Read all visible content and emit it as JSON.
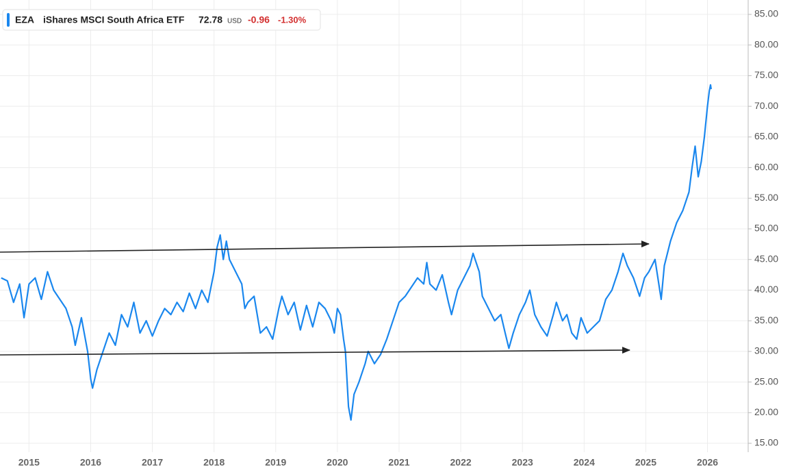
{
  "chart_data": {
    "type": "line",
    "legend": {
      "name": "iShares MSCI South Africa ETF",
      "last": 72.78,
      "currency": "USD",
      "change": -0.96,
      "change_pct": "-1.30%"
    },
    "x": [
      2014.55,
      2014.65,
      2014.75,
      2014.85,
      2014.92,
      2015.0,
      2015.1,
      2015.2,
      2015.3,
      2015.4,
      2015.5,
      2015.6,
      2015.7,
      2015.75,
      2015.85,
      2015.95,
      2016.0,
      2016.03,
      2016.1,
      2016.2,
      2016.3,
      2016.4,
      2016.5,
      2016.6,
      2016.7,
      2016.8,
      2016.9,
      2017.0,
      2017.1,
      2017.2,
      2017.3,
      2017.4,
      2017.5,
      2017.6,
      2017.7,
      2017.8,
      2017.9,
      2018.0,
      2018.05,
      2018.1,
      2018.15,
      2018.2,
      2018.25,
      2018.35,
      2018.45,
      2018.5,
      2018.55,
      2018.65,
      2018.75,
      2018.85,
      2018.95,
      2019.05,
      2019.1,
      2019.2,
      2019.3,
      2019.4,
      2019.5,
      2019.6,
      2019.7,
      2019.8,
      2019.9,
      2019.95,
      2020.0,
      2020.05,
      2020.1,
      2020.13,
      2020.18,
      2020.22,
      2020.27,
      2020.35,
      2020.45,
      2020.5,
      2020.6,
      2020.7,
      2020.8,
      2020.9,
      2021.0,
      2021.1,
      2021.2,
      2021.3,
      2021.4,
      2021.45,
      2021.5,
      2021.6,
      2021.7,
      2021.8,
      2021.85,
      2021.95,
      2022.05,
      2022.15,
      2022.2,
      2022.3,
      2022.35,
      2022.45,
      2022.55,
      2022.65,
      2022.72,
      2022.78,
      2022.85,
      2022.95,
      2023.05,
      2023.12,
      2023.2,
      2023.3,
      2023.4,
      2023.5,
      2023.55,
      2023.65,
      2023.72,
      2023.8,
      2023.88,
      2023.95,
      2024.05,
      2024.15,
      2024.25,
      2024.35,
      2024.45,
      2024.55,
      2024.63,
      2024.7,
      2024.8,
      2024.9,
      2024.98,
      2025.05,
      2025.15,
      2025.25,
      2025.3,
      2025.4,
      2025.5,
      2025.6,
      2025.7,
      2025.75,
      2025.8,
      2025.85,
      2025.9,
      2025.95,
      2026.0,
      2026.03,
      2026.05,
      2026.06
    ],
    "series": [
      {
        "name": "EZA",
        "color": "#1a87ee",
        "values": [
          42,
          41.5,
          38,
          41,
          35.5,
          41,
          42,
          38.5,
          43,
          40,
          38.5,
          37,
          34,
          31,
          35.5,
          30,
          25.5,
          24,
          27,
          30,
          33,
          31,
          36,
          34,
          38,
          33,
          35,
          32.5,
          35,
          37,
          36,
          38,
          36.5,
          39.5,
          37,
          40,
          38,
          43,
          47,
          49,
          45,
          48,
          45,
          43,
          41,
          37,
          38,
          39,
          33,
          34,
          32,
          37,
          39,
          36,
          38,
          33.5,
          37.5,
          34,
          38,
          37,
          35,
          33,
          37,
          36,
          32,
          30,
          21,
          18.8,
          23,
          25,
          28,
          30,
          28,
          29.5,
          32,
          35,
          38,
          39,
          40.5,
          42,
          41,
          44.5,
          41,
          40,
          42.5,
          38,
          36,
          40,
          42,
          44,
          46,
          43,
          39,
          37,
          35,
          36,
          33,
          30.5,
          33,
          36,
          38,
          40,
          36,
          34,
          32.5,
          36,
          38,
          35,
          36,
          33,
          32,
          35.5,
          33,
          34,
          35,
          38.5,
          40,
          43,
          46,
          44,
          42,
          39,
          42,
          43,
          45,
          38.5,
          44,
          48,
          51,
          53,
          56,
          60,
          63.5,
          58.5,
          61,
          65,
          70,
          72.5,
          73.5,
          72.8
        ]
      }
    ],
    "xlim": [
      2014.53,
      2026.66
    ],
    "xticks": [
      2015,
      2016,
      2017,
      2018,
      2019,
      2020,
      2021,
      2022,
      2023,
      2024,
      2025,
      2026
    ],
    "ylim": [
      13.55,
      86.79
    ],
    "yticks": [
      {
        "value": 15,
        "label": "15.00"
      },
      {
        "value": 20,
        "label": "20.00"
      },
      {
        "value": 25,
        "label": "25.00"
      },
      {
        "value": 30,
        "label": "30.00"
      },
      {
        "value": 35,
        "label": "35.00"
      },
      {
        "value": 40,
        "label": "40.00"
      },
      {
        "value": 45,
        "label": "45.00"
      },
      {
        "value": 50,
        "label": "50.00"
      },
      {
        "value": 55,
        "label": "55.00"
      },
      {
        "value": 60,
        "label": "60.00"
      },
      {
        "value": 65,
        "label": "65.00"
      },
      {
        "value": 70,
        "label": "70.00"
      },
      {
        "value": 75,
        "label": "75.00"
      },
      {
        "value": 80,
        "label": "80.00"
      },
      {
        "value": 85,
        "label": "85.00"
      }
    ],
    "grid": true
  }
}
